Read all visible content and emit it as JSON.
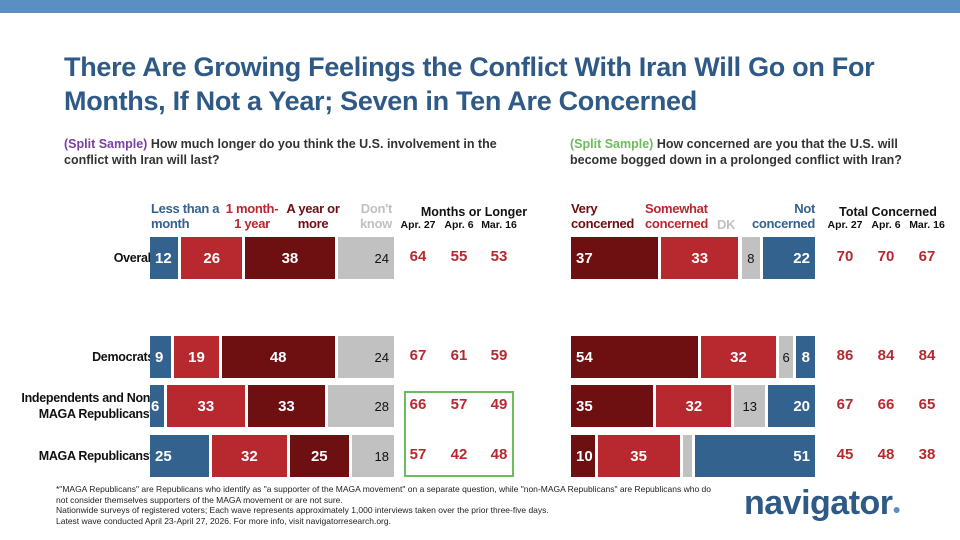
{
  "title": "There Are Growing Feelings the Conflict With Iran Will Go on For Months, If Not a Year; Seven in Ten Are Concerned",
  "colors": {
    "blue": "#33628f",
    "red": "#b8282f",
    "darkred": "#6e0f12",
    "gray": "#c1c1c1",
    "green": "#6dbb5c",
    "purple": "#7a3fa0"
  },
  "rows": [
    "Overall",
    "Democrats",
    "Independents and Non-MAGA Republicans*",
    "MAGA Republicans*"
  ],
  "chart_data": [
    {
      "type": "bar",
      "stacked": true,
      "orientation": "horizontal",
      "question_tag": "(Split Sample)",
      "question": "How much longer do you think the U.S. involvement in the conflict with Iran will last?",
      "categories": [
        "Overall",
        "Democrats",
        "Independents and Non-MAGA Republicans*",
        "MAGA Republicans*"
      ],
      "series": [
        {
          "name": "Less than a month",
          "color": "#33628f",
          "values": [
            12,
            9,
            6,
            25
          ]
        },
        {
          "name": "1 month- 1 year",
          "color": "#b8282f",
          "values": [
            26,
            19,
            33,
            32
          ]
        },
        {
          "name": "A year or more",
          "color": "#6e0f12",
          "values": [
            38,
            48,
            33,
            25
          ]
        },
        {
          "name": "Don't know",
          "color": "#c1c1c1",
          "values": [
            24,
            24,
            28,
            18
          ]
        }
      ],
      "trend": {
        "label": "Months or Longer",
        "waves": [
          "Apr. 27",
          "Apr. 6",
          "Mar. 16"
        ],
        "values": [
          [
            64,
            55,
            53
          ],
          [
            67,
            61,
            59
          ],
          [
            66,
            57,
            49
          ],
          [
            57,
            42,
            48
          ]
        ]
      }
    },
    {
      "type": "bar",
      "stacked": true,
      "orientation": "horizontal",
      "question_tag": "(Split Sample)",
      "question": "How concerned are you that the U.S. will become bogged down in a prolonged conflict with Iran?",
      "categories": [
        "Overall",
        "Democrats",
        "Independents and Non-MAGA Republicans*",
        "MAGA Republicans*"
      ],
      "series": [
        {
          "name": "Very concerned",
          "color": "#6e0f12",
          "values": [
            37,
            54,
            35,
            10
          ]
        },
        {
          "name": "Somewhat concerned",
          "color": "#b8282f",
          "values": [
            33,
            32,
            32,
            35
          ]
        },
        {
          "name": "DK",
          "color": "#c1c1c1",
          "values": [
            8,
            6,
            13,
            4
          ],
          "hidden_labels": [
            3
          ]
        },
        {
          "name": "Not concerned",
          "color": "#33628f",
          "values": [
            22,
            8,
            20,
            51
          ]
        }
      ],
      "trend": {
        "label": "Total Concerned",
        "waves": [
          "Apr. 27",
          "Apr. 6",
          "Mar. 16"
        ],
        "values": [
          [
            70,
            70,
            67
          ],
          [
            86,
            84,
            84
          ],
          [
            67,
            66,
            65
          ],
          [
            45,
            48,
            38
          ]
        ]
      }
    }
  ],
  "footnote": [
    "*\"MAGA Republicans\" are Republicans who identify as \"a supporter of the MAGA movement\" on a separate question, while \"non-MAGA Republicans\" are Republicans who do not consider themselves supporters of the MAGA movement or are not sure.",
    "Nationwide surveys of registered voters; Each wave represents approximately 1,000 interviews taken over the prior three-five days.",
    "Latest wave conducted April 23-April 27, 2026. For more info, visit navigatorresearch.org."
  ],
  "logo": "navigator"
}
